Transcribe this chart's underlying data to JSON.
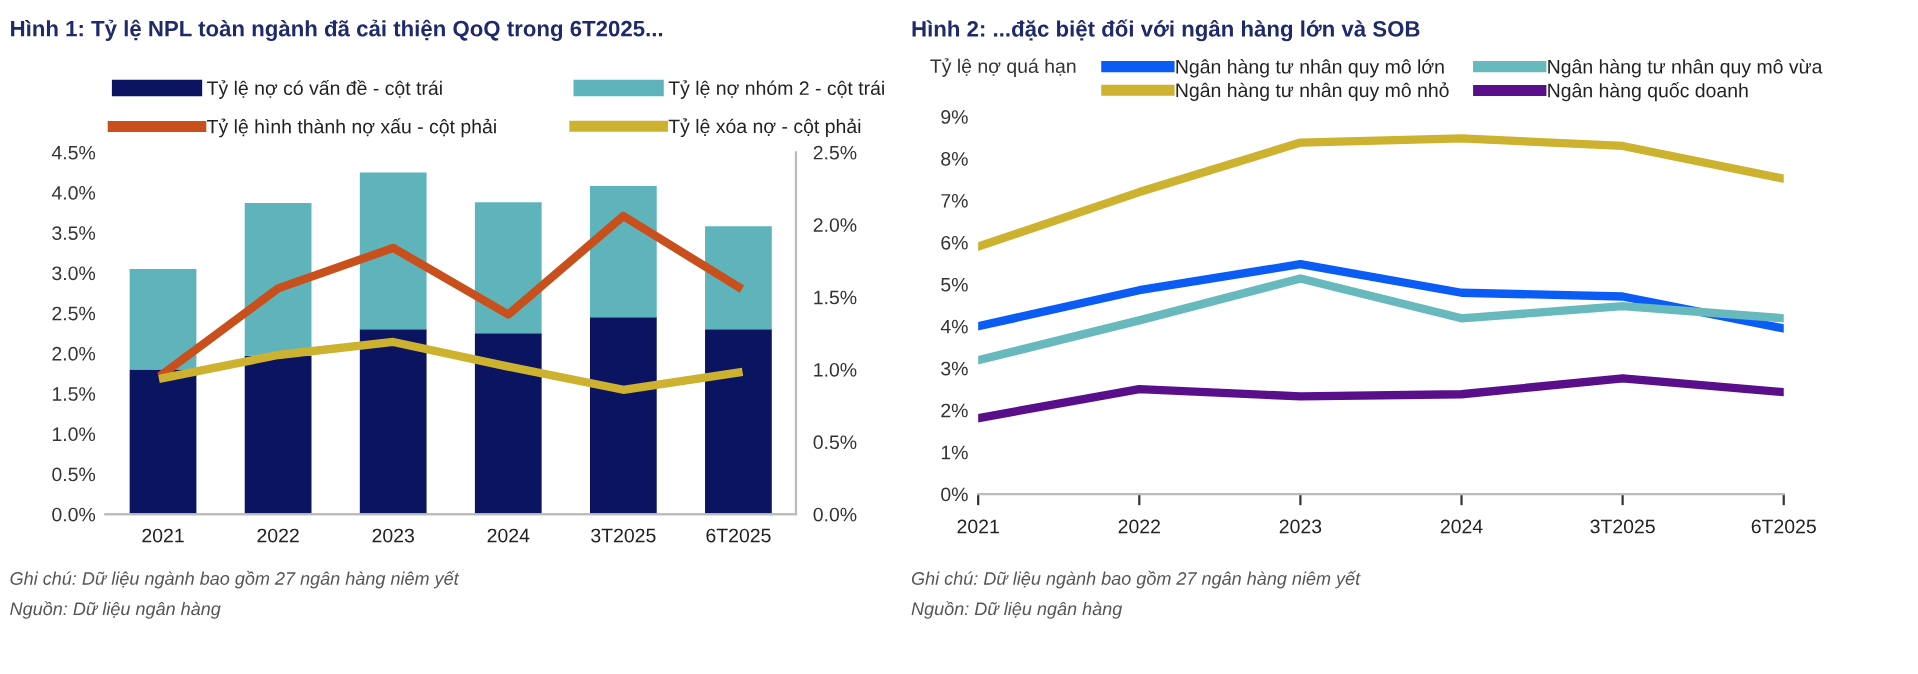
{
  "chart_data": [
    {
      "type": "bar",
      "stacked": true,
      "title": "Hình 1: Tỷ lệ NPL toàn ngành đã cải thiện QoQ trong 6T2025...",
      "categories": [
        "2021",
        "2022",
        "2023",
        "2024",
        "3T2025",
        "6T2025"
      ],
      "series": [
        {
          "name": "Tỷ lệ nợ có vấn đề - cột trái",
          "color": "#0b1461",
          "values": [
            1.8,
            1.97,
            2.3,
            2.25,
            2.45,
            2.3
          ]
        },
        {
          "name": "Tỷ lệ nợ nhóm 2 - cột trái",
          "color": "#5fb4bb",
          "values": [
            1.25,
            1.9,
            1.95,
            1.63,
            1.63,
            1.28
          ]
        },
        {
          "name": "Tỷ lệ hình thành nợ xấu - cột phải",
          "type": "line",
          "axis": "y2",
          "color": "#c9501c",
          "values": [
            0.97,
            1.56,
            1.84,
            1.38,
            2.06,
            1.57
          ]
        },
        {
          "name": "Tỷ lệ xóa nợ - cột phải",
          "type": "line",
          "axis": "y2",
          "color": "#cdb22f",
          "values": [
            0.94,
            1.1,
            1.19,
            1.02,
            0.86,
            0.98
          ]
        }
      ],
      "ylim": [
        0,
        4.5
      ],
      "yticks": [
        {
          "value": 0,
          "label": "0.0%"
        },
        {
          "value": 0.5,
          "label": "0.5%"
        },
        {
          "value": 1,
          "label": "1.0%"
        },
        {
          "value": 1.5,
          "label": "1.5%"
        },
        {
          "value": 2,
          "label": "2.0%"
        },
        {
          "value": 2.5,
          "label": "2.5%"
        },
        {
          "value": 3,
          "label": "3.0%"
        },
        {
          "value": 3.5,
          "label": "3.5%"
        },
        {
          "value": 4,
          "label": "4.0%"
        },
        {
          "value": 4.5,
          "label": "4.5%"
        }
      ],
      "y2lim": [
        0,
        2.5
      ],
      "y2ticks": [
        {
          "value": 0,
          "label": "0.0%"
        },
        {
          "value": 0.5,
          "label": "0.5%"
        },
        {
          "value": 1,
          "label": "1.0%"
        },
        {
          "value": 1.5,
          "label": "1.5%"
        },
        {
          "value": 2,
          "label": "2.0%"
        },
        {
          "value": 2.5,
          "label": "2.5%"
        }
      ],
      "legend": "top",
      "grid": false,
      "annotations": [
        "Ghi chú: Dữ liệu ngành bao gồm 27 ngân hàng niêm yết",
        "Nguồn: Dữ liệu ngân hàng"
      ]
    },
    {
      "type": "line",
      "title": "Hình 2: ...đặc biệt đối với ngân hàng lớn và SOB",
      "ylabel": "Tỷ lệ nợ quá hạn",
      "categories": [
        "2021",
        "2022",
        "2023",
        "2024",
        "3T2025",
        "6T2025"
      ],
      "series": [
        {
          "name": "Ngân hàng tư nhân quy mô lớn",
          "color": "#0a5cf5",
          "values": [
            4.0,
            4.86,
            5.48,
            4.8,
            4.71,
            3.95
          ]
        },
        {
          "name": "Ngân hàng tư nhân quy mô vừa",
          "color": "#67b9bd",
          "values": [
            3.19,
            4.14,
            5.14,
            4.19,
            4.48,
            4.19
          ]
        },
        {
          "name": "Ngân hàng tư nhân quy mô nhỏ",
          "color": "#cdb22f",
          "values": [
            5.9,
            7.2,
            8.38,
            8.48,
            8.3,
            7.52
          ]
        },
        {
          "name": "Ngân hàng quốc doanh",
          "color": "#5a0f8a",
          "values": [
            1.81,
            2.5,
            2.33,
            2.38,
            2.76,
            2.43
          ]
        }
      ],
      "ylim": [
        0,
        9
      ],
      "yticks": [
        {
          "value": 0,
          "label": "0%"
        },
        {
          "value": 1,
          "label": "1%"
        },
        {
          "value": 2,
          "label": "2%"
        },
        {
          "value": 3,
          "label": "3%"
        },
        {
          "value": 4,
          "label": "4%"
        },
        {
          "value": 5,
          "label": "5%"
        },
        {
          "value": 6,
          "label": "6%"
        },
        {
          "value": 7,
          "label": "7%"
        },
        {
          "value": 8,
          "label": "8%"
        },
        {
          "value": 9,
          "label": "9%"
        }
      ],
      "legend": "top",
      "grid": false,
      "annotations": [
        "Ghi chú: Dữ liệu ngành bao gồm 27 ngân hàng niêm yết",
        "Nguồn: Dữ liệu ngân hàng"
      ]
    }
  ]
}
